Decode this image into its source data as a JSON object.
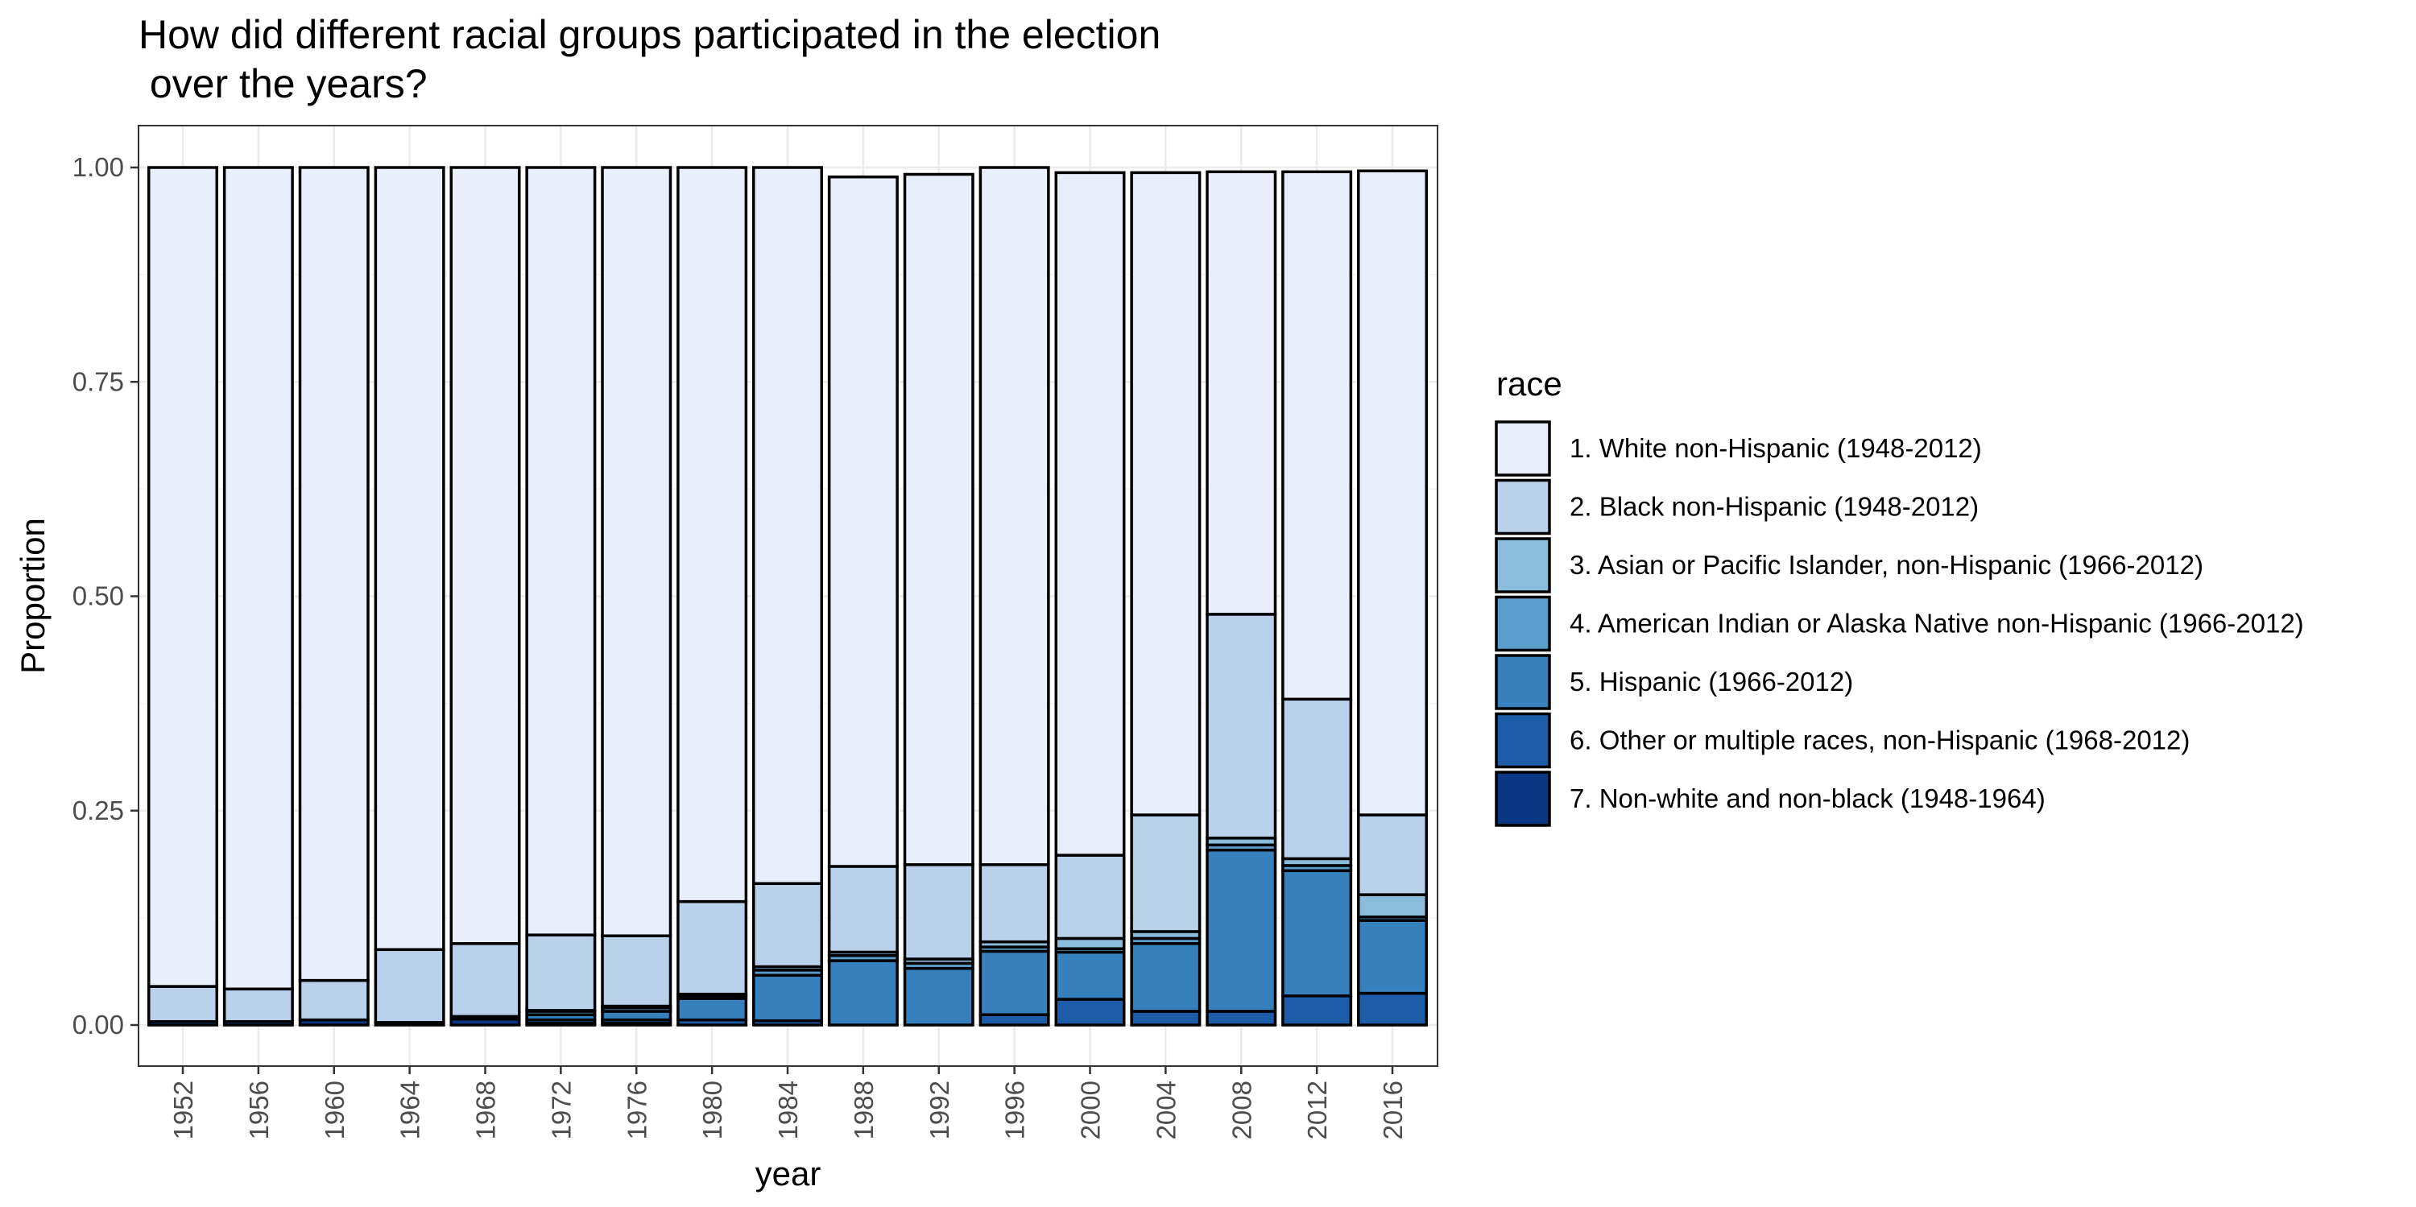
{
  "chart_data": {
    "type": "bar",
    "stacked": true,
    "normalized": true,
    "title_line1": "How did different racial groups participated in the election",
    "title_line2": " over the years?",
    "xlabel": "year",
    "ylabel": "Proportion",
    "ylim": [
      0,
      1
    ],
    "yticks": [
      "0.00",
      "0.25",
      "0.50",
      "0.75",
      "1.00"
    ],
    "grid": true,
    "legend_position": "right",
    "legend_title": "race",
    "categories": [
      "1952",
      "1956",
      "1960",
      "1964",
      "1968",
      "1972",
      "1976",
      "1980",
      "1984",
      "1988",
      "1992",
      "1996",
      "2000",
      "2004",
      "2008",
      "2012",
      "2016"
    ],
    "series": [
      {
        "name": "1. White non-Hispanic (1948-2012)",
        "color": "#e8eefa",
        "values": [
          0.955,
          0.958,
          0.948,
          0.912,
          0.905,
          0.895,
          0.896,
          0.856,
          0.835,
          0.804,
          0.805,
          0.813,
          0.796,
          0.749,
          0.516,
          0.615,
          0.751
        ]
      },
      {
        "name": "2. Black non-Hispanic (1948-2012)",
        "color": "#bad1eb",
        "values": [
          0.041,
          0.038,
          0.046,
          0.085,
          0.085,
          0.088,
          0.082,
          0.108,
          0.097,
          0.1,
          0.11,
          0.09,
          0.097,
          0.136,
          0.261,
          0.186,
          0.093
        ]
      },
      {
        "name": "3. Asian or Pacific Islander, non-Hispanic (1966-2012)",
        "color": "#8bbcdc",
        "values": [
          0,
          0,
          0,
          0,
          0,
          0.001,
          0.002,
          0.002,
          0.004,
          0.004,
          0.005,
          0.006,
          0.012,
          0.008,
          0.008,
          0.008,
          0.026
        ]
      },
      {
        "name": "4. American Indian or Alaska Native non-Hispanic (1966-2012)",
        "color": "#5a9ecd",
        "values": [
          0,
          0,
          0,
          0,
          0,
          0.004,
          0.004,
          0.003,
          0.006,
          0.006,
          0.006,
          0.005,
          0.004,
          0.006,
          0.006,
          0.006,
          0.004
        ]
      },
      {
        "name": "5. Hispanic (1966-2012)",
        "color": "#3780be",
        "values": [
          0,
          0,
          0,
          0,
          0,
          0.006,
          0.01,
          0.025,
          0.053,
          0.075,
          0.066,
          0.074,
          0.055,
          0.079,
          0.188,
          0.146,
          0.085
        ]
      },
      {
        "name": "6. Other or multiple races, non-Hispanic (1968-2012)",
        "color": "#1c5ca9",
        "values": [
          0,
          0,
          0,
          0,
          0.003,
          0.004,
          0.004,
          0.006,
          0.005,
          0,
          0,
          0.012,
          0.03,
          0.016,
          0.016,
          0.034,
          0.037
        ]
      },
      {
        "name": "7. Non-white and non-black (1948-1964)",
        "color": "#0b3683",
        "values": [
          0.004,
          0.004,
          0.006,
          0.003,
          0.007,
          0.002,
          0.002,
          0,
          0,
          0,
          0,
          0,
          0,
          0,
          0,
          0,
          0
        ]
      }
    ]
  }
}
